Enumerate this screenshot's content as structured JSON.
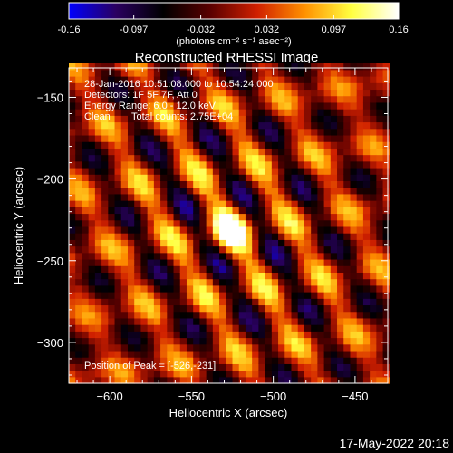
{
  "colorbar": {
    "ticks": [
      "-0.16",
      "-0.097",
      "-0.032",
      "0.032",
      "0.097",
      "0.16"
    ],
    "tick_values": [
      -0.16,
      -0.097,
      -0.032,
      0.032,
      0.097,
      0.16
    ],
    "range": [
      -0.16,
      0.16
    ],
    "unit_label": "(photons cm⁻² s⁻¹ asec⁻²)",
    "colormap": [
      "#0000ff",
      "#2a0060",
      "#000000",
      "#5a0000",
      "#d02000",
      "#ff9000",
      "#ffff40",
      "#ffffff"
    ]
  },
  "chart_data": {
    "type": "heatmap",
    "title": "Reconstructed RHESSI Image",
    "xlabel": "Heliocentric X (arcsec)",
    "ylabel": "Heliocentric Y (arcsec)",
    "xlim": [
      -625,
      -430
    ],
    "ylim": [
      -325,
      -132
    ],
    "xticks": [
      -600,
      -550,
      -500,
      -450
    ],
    "yticks": [
      -300,
      -250,
      -200,
      -150
    ],
    "xtick_labels": [
      "−600",
      "−550",
      "−500",
      "−450"
    ],
    "ytick_labels": [
      "−300",
      "−250",
      "−200",
      "−150"
    ],
    "grid": false,
    "pattern": {
      "peak_position": [
        -526,
        -231
      ],
      "fringe_angle_deg": 30,
      "fringe_period_arcsec": 34,
      "pixel_arcsec": 4
    },
    "annotations": {
      "time_range": "28-Jan-2016 10:51:08.000 to 10:54:24.000",
      "detectors": "Detectors: 1F 5F 7F, Att 0",
      "energy": "Energy Range: 6.0 - 12.0 keV",
      "method": "Clean",
      "counts": "Total counts: 2.75E+04",
      "peak": "Position of Peak = [-526,-231]"
    }
  },
  "footer": {
    "timestamp": "17-May-2022 20:18"
  }
}
